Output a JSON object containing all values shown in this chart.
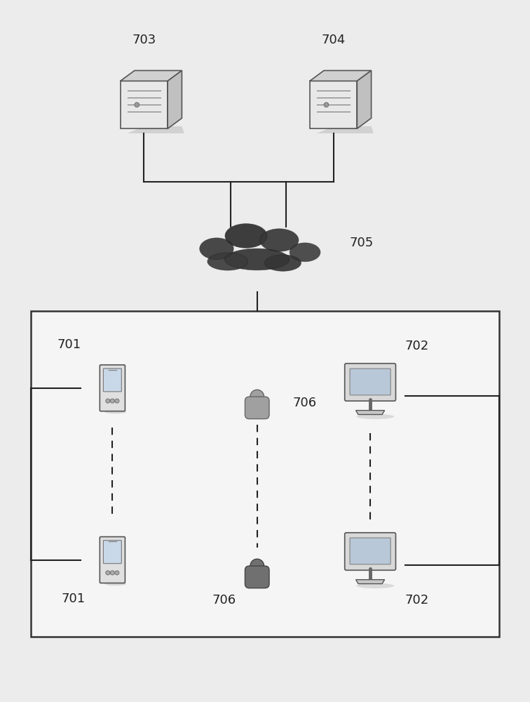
{
  "bg_color": "#ececec",
  "fig_bg": "#ececec",
  "label_703": "703",
  "label_704": "704",
  "label_705": "705",
  "label_701a": "701",
  "label_701b": "701",
  "label_702a": "702",
  "label_702b": "702",
  "label_706a": "706",
  "label_706b": "706",
  "line_color": "#222222",
  "font_size": 13
}
